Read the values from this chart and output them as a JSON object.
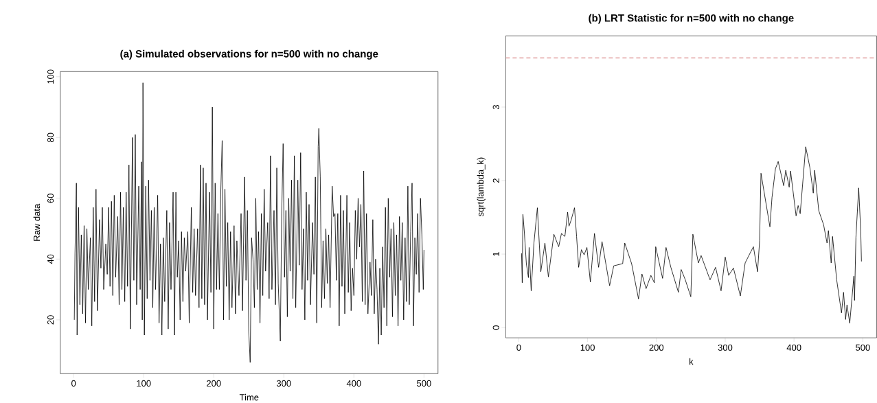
{
  "chart_data": [
    {
      "type": "line",
      "title": "(a) Simulated observations for n=500 with no change",
      "xlabel": "Time",
      "ylabel": "Raw data",
      "color": "#000000",
      "xlim": [
        -19,
        520
      ],
      "ylim": [
        2.3,
        101.7
      ],
      "xticks": [
        0,
        100,
        200,
        300,
        400,
        500
      ],
      "yticks": [
        20,
        40,
        60,
        80,
        100
      ],
      "x": [
        1,
        2,
        4,
        5,
        7,
        9,
        11,
        13,
        15,
        17,
        19,
        21,
        24,
        26,
        28,
        30,
        32,
        34,
        37,
        39,
        41,
        43,
        46,
        48,
        50,
        52,
        54,
        56,
        58,
        60,
        63,
        65,
        67,
        69,
        71,
        73,
        75,
        77,
        79,
        81,
        84,
        86,
        88,
        90,
        93,
        95,
        97,
        98,
        99,
        101,
        103,
        105,
        107,
        109,
        111,
        113,
        115,
        117,
        120,
        122,
        124,
        126,
        128,
        130,
        133,
        135,
        137,
        139,
        142,
        144,
        146,
        148,
        150,
        152,
        154,
        156,
        158,
        160,
        163,
        165,
        168,
        170,
        172,
        174,
        177,
        179,
        181,
        183,
        185,
        187,
        189,
        191,
        194,
        196,
        198,
        200,
        202,
        204,
        206,
        208,
        210,
        212,
        214,
        216,
        218,
        220,
        222,
        224,
        226,
        229,
        231,
        233,
        236,
        239,
        241,
        244,
        246,
        248,
        250,
        252,
        254,
        256,
        258,
        260,
        262,
        264,
        266,
        268,
        270,
        272,
        274,
        277,
        279,
        281,
        283,
        286,
        288,
        290,
        292,
        295,
        297,
        299,
        301,
        303,
        305,
        307,
        309,
        311,
        313,
        315,
        317,
        320,
        322,
        324,
        326,
        328,
        330,
        332,
        334,
        336,
        338,
        341,
        343,
        345,
        347,
        349,
        350,
        352,
        354,
        356,
        358,
        360,
        362,
        364,
        366,
        369,
        371,
        373,
        375,
        377,
        379,
        381,
        383,
        385,
        387,
        390,
        392,
        394,
        396,
        398,
        400,
        402,
        404,
        406,
        408,
        410,
        412,
        414,
        416,
        418,
        420,
        423,
        425,
        427,
        429,
        431,
        433,
        435,
        437,
        439,
        441,
        443,
        445,
        447,
        449,
        451,
        453,
        455,
        457,
        459,
        461,
        463,
        465,
        467,
        469,
        471,
        473,
        475,
        477,
        479,
        481,
        483,
        485,
        487,
        489,
        491,
        493,
        495,
        497,
        499,
        500
      ],
      "values": [
        20,
        42,
        65,
        15,
        57,
        25,
        48,
        22,
        51,
        19,
        50,
        30,
        47,
        18,
        57,
        26,
        63,
        23,
        53,
        37,
        57,
        30,
        45,
        35,
        57,
        31,
        59,
        28,
        61,
        34,
        54,
        25,
        62,
        30,
        57,
        26,
        62,
        31,
        71,
        17,
        80,
        33,
        81,
        25,
        64,
        30,
        72,
        20,
        98,
        15,
        64,
        27,
        66,
        33,
        56,
        24,
        57,
        30,
        61,
        19,
        45,
        15,
        47,
        26,
        56,
        17,
        52,
        30,
        62,
        15,
        62,
        34,
        46,
        20,
        49,
        26,
        47,
        36,
        49,
        19,
        57,
        29,
        50,
        28,
        50,
        24,
        71,
        27,
        70,
        25,
        65,
        20,
        62,
        29,
        90,
        17,
        65,
        30,
        55,
        30,
        62,
        79,
        20,
        63,
        31,
        52,
        20,
        49,
        24,
        51,
        22,
        46,
        28,
        55,
        23,
        67,
        33,
        56,
        16,
        6,
        47,
        40,
        24,
        60,
        30,
        49,
        19,
        55,
        28,
        63,
        36,
        52,
        27,
        74,
        30,
        56,
        25,
        70,
        32,
        13,
        55,
        78,
        34,
        56,
        21,
        60,
        36,
        66,
        27,
        74,
        24,
        66,
        38,
        75,
        30,
        50,
        20,
        62,
        33,
        58,
        25,
        52,
        35,
        67,
        19,
        77,
        83,
        67,
        24,
        46,
        27,
        50,
        32,
        48,
        24,
        64,
        54,
        55,
        33,
        55,
        18,
        61,
        31,
        56,
        22,
        61,
        29,
        52,
        23,
        37,
        28,
        56,
        40,
        60,
        44,
        58,
        26,
        69,
        25,
        55,
        22,
        39,
        28,
        53,
        22,
        40,
        30,
        12,
        37,
        15,
        44,
        24,
        57,
        18,
        60,
        34,
        50,
        21,
        52,
        28,
        48,
        18,
        54,
        33,
        52,
        20,
        47,
        26,
        64,
        25,
        49,
        65,
        18,
        47,
        35,
        55,
        29,
        60,
        48,
        30,
        43
      ]
    },
    {
      "type": "line",
      "title": "(b) LRT Statistic for n=500 with no change",
      "xlabel": "k",
      "ylabel": "sqrt(lambda_k)",
      "color": "#000000",
      "xlim": [
        -19,
        520
      ],
      "ylim": [
        -0.14,
        3.97
      ],
      "xticks": [
        0,
        100,
        200,
        300,
        400,
        500
      ],
      "yticks": [
        0,
        1,
        2,
        3
      ],
      "ref_lines": [
        {
          "axis": "y",
          "value": 3.67,
          "color": "#cd5c5c",
          "line_style": "dashed"
        }
      ],
      "x": [
        4,
        5,
        6,
        8,
        11,
        14,
        15,
        18,
        22,
        27,
        32,
        38,
        43,
        51,
        58,
        62,
        67,
        71,
        73,
        76,
        81,
        84,
        87,
        91,
        95,
        99,
        104,
        110,
        116,
        121,
        132,
        138,
        151,
        154,
        164,
        174,
        179,
        185,
        192,
        197,
        199,
        209,
        214,
        221,
        232,
        236,
        242,
        250,
        253,
        261,
        265,
        278,
        286,
        294,
        300,
        305,
        312,
        322,
        329,
        336,
        341,
        347,
        350,
        352,
        365,
        368,
        373,
        377,
        385,
        388,
        393,
        395,
        403,
        406,
        409,
        417,
        423,
        428,
        430,
        436,
        443,
        448,
        450,
        454,
        456,
        462,
        469,
        472,
        475,
        477,
        481,
        487,
        488,
        490,
        494,
        497,
        498
      ],
      "values": [
        1.01,
        0.61,
        1.54,
        1.31,
        0.87,
        0.68,
        1.09,
        0.5,
        1.15,
        1.63,
        0.76,
        1.15,
        0.69,
        1.27,
        1.1,
        1.28,
        1.24,
        1.57,
        1.38,
        1.46,
        1.63,
        1.24,
        0.82,
        1.06,
        0.99,
        1.09,
        0.62,
        1.28,
        0.82,
        1.17,
        0.57,
        0.84,
        0.87,
        1.15,
        0.87,
        0.39,
        0.73,
        0.53,
        0.71,
        0.61,
        1.1,
        0.67,
        1.09,
        0.82,
        0.48,
        0.79,
        0.65,
        0.42,
        1.27,
        0.88,
        0.98,
        0.65,
        0.82,
        0.5,
        0.96,
        0.71,
        0.81,
        0.43,
        0.88,
        1.01,
        1.1,
        0.76,
        1.18,
        2.1,
        1.37,
        1.77,
        2.16,
        2.26,
        1.93,
        2.14,
        1.91,
        2.13,
        1.52,
        1.66,
        1.55,
        2.46,
        2.18,
        1.83,
        2.14,
        1.59,
        1.4,
        1.15,
        1.32,
        0.88,
        1.24,
        0.65,
        0.2,
        0.48,
        0.11,
        0.31,
        0.06,
        0.7,
        0.37,
        1.23,
        1.9,
        1.31,
        0.9
      ]
    }
  ]
}
